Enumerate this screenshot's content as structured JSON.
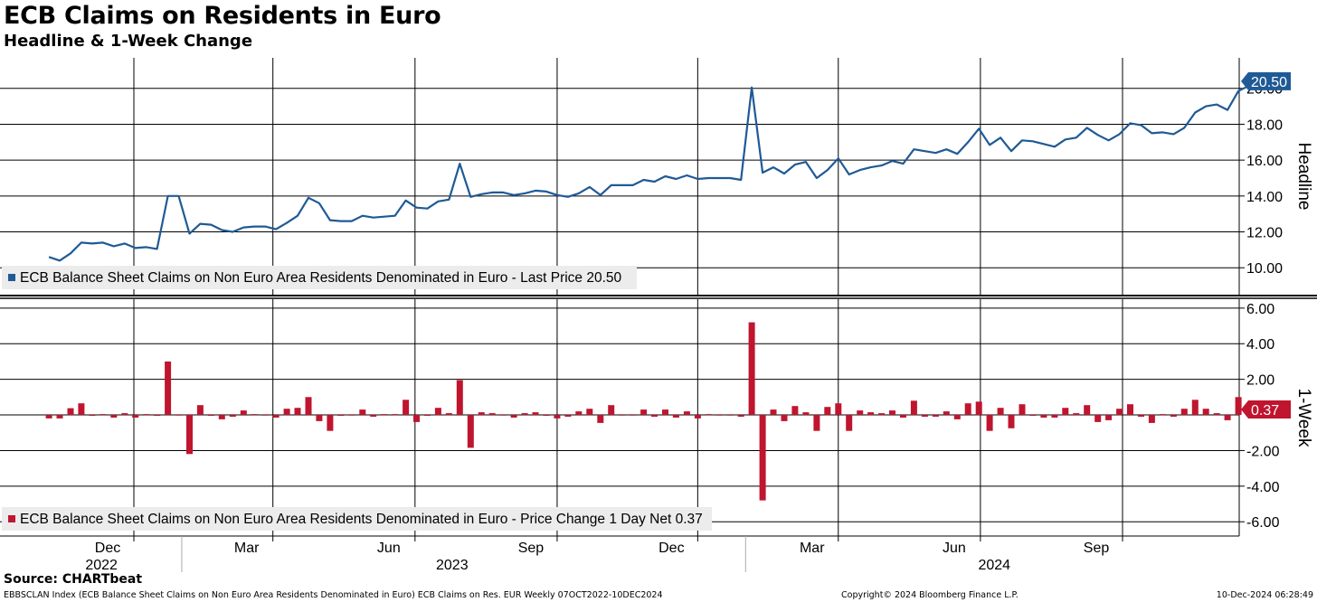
{
  "header": {
    "title": "ECB Claims on Residents in Euro",
    "subtitle": "Headline & 1-Week Change"
  },
  "footer": {
    "source": "Source: CHARTbeat",
    "description": "EBBSCLAN Index (ECB Balance Sheet Claims on Non Euro Area Residents Denominated in Euro) ECB Claims on Res. EUR  Weekly 07OCT2022-10DEC2024",
    "copyright": "Copyright© 2024 Bloomberg Finance L.P.",
    "timestamp": "10-Dec-2024 06:28:49"
  },
  "colors": {
    "headline_line": "#1f5a96",
    "change_bars": "#c0152f",
    "legend_bg": "#ececec",
    "grid": "#000000"
  },
  "chart_data": [
    {
      "type": "line",
      "panel": "top",
      "axis_title": "Headline",
      "y_ticks": [
        "10.00",
        "12.00",
        "14.00",
        "16.00",
        "18.00",
        "20.00"
      ],
      "ylim": [
        8.5,
        21.7
      ],
      "series": [
        {
          "name": "ECB Balance Sheet Claims on Non Euro Area Residents Denominated in Euro - Last Price 20.50",
          "x_start": "2022-10-07",
          "x_end": "2024-12-06",
          "frequency": "weekly",
          "values": [
            10.6,
            10.4,
            10.8,
            11.4,
            11.35,
            11.4,
            11.2,
            11.35,
            11.1,
            11.15,
            11.05,
            14.0,
            14.0,
            11.9,
            12.45,
            12.4,
            12.1,
            12.0,
            12.25,
            12.3,
            12.3,
            12.15,
            12.5,
            12.9,
            13.9,
            13.6,
            12.65,
            12.6,
            12.6,
            12.9,
            12.8,
            12.85,
            12.9,
            13.75,
            13.35,
            13.3,
            13.7,
            13.8,
            15.8,
            13.95,
            14.1,
            14.2,
            14.2,
            14.05,
            14.15,
            14.3,
            14.25,
            14.05,
            13.95,
            14.15,
            14.5,
            14.05,
            14.6,
            14.6,
            14.6,
            14.9,
            14.8,
            15.1,
            14.95,
            15.15,
            14.95,
            15.0,
            15.0,
            15.0,
            14.9,
            20.05,
            15.3,
            15.6,
            15.25,
            15.75,
            15.9,
            15.0,
            15.45,
            16.1,
            15.2,
            15.45,
            15.6,
            15.7,
            15.95,
            15.8,
            16.6,
            16.5,
            16.4,
            16.6,
            16.35,
            17.0,
            17.75,
            16.85,
            17.25,
            16.5,
            17.1,
            17.05,
            16.9,
            16.75,
            17.15,
            17.25,
            17.8,
            17.4,
            17.1,
            17.45,
            18.05,
            17.95,
            17.5,
            17.55,
            17.45,
            17.8,
            18.65,
            19.0,
            19.1,
            18.8,
            19.85,
            20.15,
            20.15,
            20.5
          ]
        }
      ],
      "last_value_label": "20.50"
    },
    {
      "type": "bar",
      "panel": "bottom",
      "axis_title": "1-Week",
      "y_ticks": [
        "6.00",
        "4.00",
        "2.00",
        "-2.00",
        "-4.00",
        "-6.00"
      ],
      "ylim": [
        -6.8,
        6.5
      ],
      "series": [
        {
          "name": "ECB Balance Sheet Claims on Non Euro Area Residents Denominated in Euro - Price Change 1 Day Net 0.37",
          "values": [
            -0.2,
            -0.2,
            0.38,
            0.65,
            -0.05,
            0.05,
            -0.15,
            0.1,
            -0.15,
            0.05,
            -0.05,
            3.0,
            0.0,
            -2.2,
            0.55,
            -0.05,
            -0.25,
            -0.1,
            0.25,
            0.05,
            0.0,
            -0.15,
            0.35,
            0.4,
            1.0,
            -0.35,
            -0.9,
            -0.05,
            0.0,
            0.3,
            -0.1,
            0.05,
            0.05,
            0.85,
            -0.4,
            -0.05,
            0.4,
            0.1,
            1.95,
            -1.85,
            0.15,
            0.1,
            0.0,
            -0.15,
            0.1,
            0.15,
            -0.05,
            -0.2,
            -0.1,
            0.2,
            0.35,
            -0.45,
            0.55,
            0.0,
            0.0,
            0.3,
            -0.1,
            0.3,
            -0.15,
            0.2,
            -0.2,
            0.05,
            0.0,
            0.0,
            -0.1,
            5.2,
            -4.8,
            0.3,
            -0.35,
            0.5,
            0.15,
            -0.9,
            0.45,
            0.65,
            -0.9,
            0.25,
            0.15,
            0.1,
            0.25,
            -0.15,
            0.8,
            -0.1,
            -0.1,
            0.2,
            -0.25,
            0.65,
            0.75,
            -0.9,
            0.4,
            -0.75,
            0.6,
            -0.05,
            -0.15,
            -0.15,
            0.4,
            0.1,
            0.55,
            -0.4,
            -0.3,
            0.35,
            0.6,
            -0.1,
            -0.45,
            0.05,
            -0.1,
            0.35,
            0.85,
            0.35,
            0.1,
            -0.3,
            1.0,
            0.3,
            0.0,
            0.37
          ]
        }
      ],
      "last_value_label": "0.37"
    }
  ],
  "x_axis": {
    "month_labels": [
      "Dec",
      "Mar",
      "Jun",
      "Sep",
      "Dec",
      "Mar",
      "Jun",
      "Sep"
    ],
    "month_dates": [
      "2022-12-01",
      "2023-03-01",
      "2023-06-01",
      "2023-09-01",
      "2023-12-01",
      "2024-03-01",
      "2024-06-01",
      "2024-09-01"
    ],
    "year_labels": [
      "2022",
      "2023",
      "2024"
    ],
    "year_label_dates": [
      "2022-11-10",
      "2023-06-25",
      "2024-06-10"
    ],
    "year_separator_dates": [
      "2023-01-01",
      "2024-01-01"
    ]
  }
}
